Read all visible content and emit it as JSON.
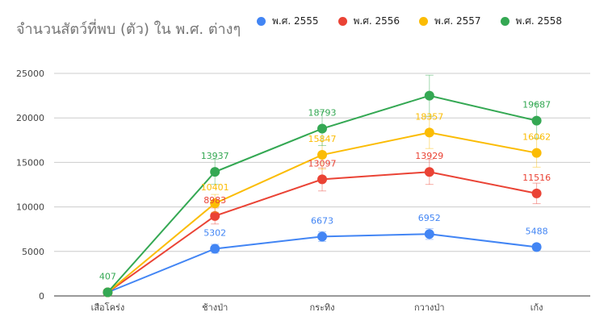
{
  "chart_data": {
    "type": "line",
    "title": "จำนวนสัตว์ที่พบ (ตัว) ใน พ.ศ. ต่างๆ",
    "categories": [
      "เสือโคร่ง",
      "ช้างป่า",
      "กระทิง",
      "กวางป่า",
      "เก้ง"
    ],
    "ylim": [
      0,
      25000
    ],
    "yticks": [
      0,
      5000,
      10000,
      15000,
      20000,
      25000
    ],
    "grid": true,
    "legend": "top",
    "series": [
      {
        "name": "พ.ศ. 2555",
        "color": "#4285f4",
        "values": [
          407,
          5302,
          6673,
          6952,
          5488
        ],
        "err": [
          100,
          500,
          550,
          600,
          350
        ]
      },
      {
        "name": "พ.ศ. 2556",
        "color": "#ea4335",
        "values": [
          407,
          8983,
          13097,
          13929,
          11516
        ],
        "err": [
          100,
          900,
          1300,
          1400,
          1150
        ]
      },
      {
        "name": "พ.ศ. 2557",
        "color": "#fbbc04",
        "values": [
          407,
          10401,
          15847,
          18357,
          16062
        ],
        "err": [
          100,
          1000,
          1600,
          1800,
          1600
        ]
      },
      {
        "name": "พ.ศ. 2558",
        "color": "#34a853",
        "values": [
          407,
          13937,
          18793,
          22494,
          19687
        ],
        "err": [
          100,
          1400,
          1900,
          2300,
          1950
        ]
      }
    ],
    "data_labels": [
      {
        "series": 0,
        "index": 1,
        "text": "5302"
      },
      {
        "series": 0,
        "index": 2,
        "text": "6673"
      },
      {
        "series": 0,
        "index": 3,
        "text": "6952"
      },
      {
        "series": 0,
        "index": 4,
        "text": "5488"
      },
      {
        "series": 1,
        "index": 1,
        "text": "8983"
      },
      {
        "series": 1,
        "index": 2,
        "text": "13097"
      },
      {
        "series": 1,
        "index": 3,
        "text": "13929"
      },
      {
        "series": 1,
        "index": 4,
        "text": "11516"
      },
      {
        "series": 2,
        "index": 1,
        "text": "10401"
      },
      {
        "series": 2,
        "index": 2,
        "text": "15847"
      },
      {
        "series": 2,
        "index": 3,
        "text": "18357"
      },
      {
        "series": 2,
        "index": 4,
        "text": "16062"
      },
      {
        "series": 3,
        "index": 0,
        "text": "407"
      },
      {
        "series": 3,
        "index": 1,
        "text": "13937"
      },
      {
        "series": 3,
        "index": 2,
        "text": "18793"
      },
      {
        "series": 3,
        "index": 4,
        "text": "19687"
      }
    ]
  }
}
